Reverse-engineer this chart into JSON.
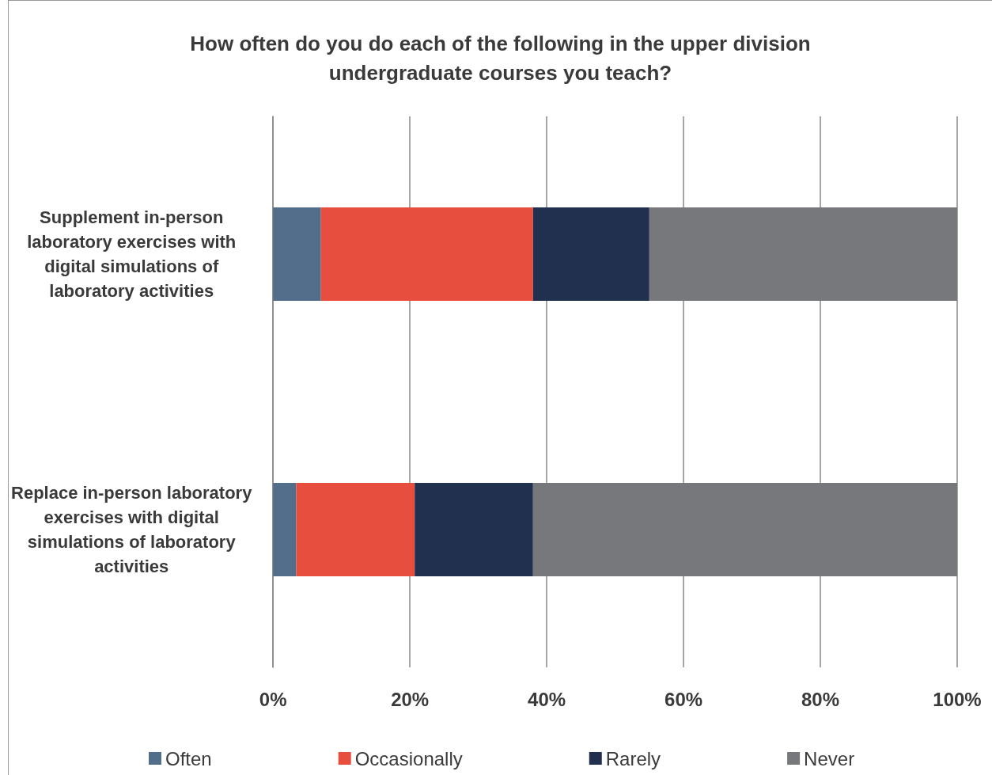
{
  "chart_data": {
    "type": "bar",
    "orientation": "horizontal",
    "stacked": true,
    "title": "How often do you do each of the following in the upper division\nundergraduate courses you teach?",
    "categories": [
      "Supplement in-person\nlaboratory exercises with\ndigital simulations of\nlaboratory activities",
      "Replace in-person laboratory\nexercises with digital\nsimulations of laboratory\nactivities"
    ],
    "series": [
      {
        "name": "Often",
        "color": "#536e8a",
        "values": [
          7,
          3.4
        ]
      },
      {
        "name": "Occasionally",
        "color": "#e84e3e",
        "values": [
          31,
          17.3
        ]
      },
      {
        "name": "Rarely",
        "color": "#22304f",
        "values": [
          17,
          17.3
        ]
      },
      {
        "name": "Never",
        "color": "#77787b",
        "values": [
          45,
          62
        ]
      }
    ],
    "xlim": [
      0,
      100
    ],
    "xticks": [
      {
        "value": 0,
        "label": "0%"
      },
      {
        "value": 20,
        "label": "20%"
      },
      {
        "value": 40,
        "label": "40%"
      },
      {
        "value": 60,
        "label": "60%"
      },
      {
        "value": 80,
        "label": "80%"
      },
      {
        "value": 100,
        "label": "100%"
      }
    ],
    "grid": "x",
    "legend": "bottom"
  }
}
